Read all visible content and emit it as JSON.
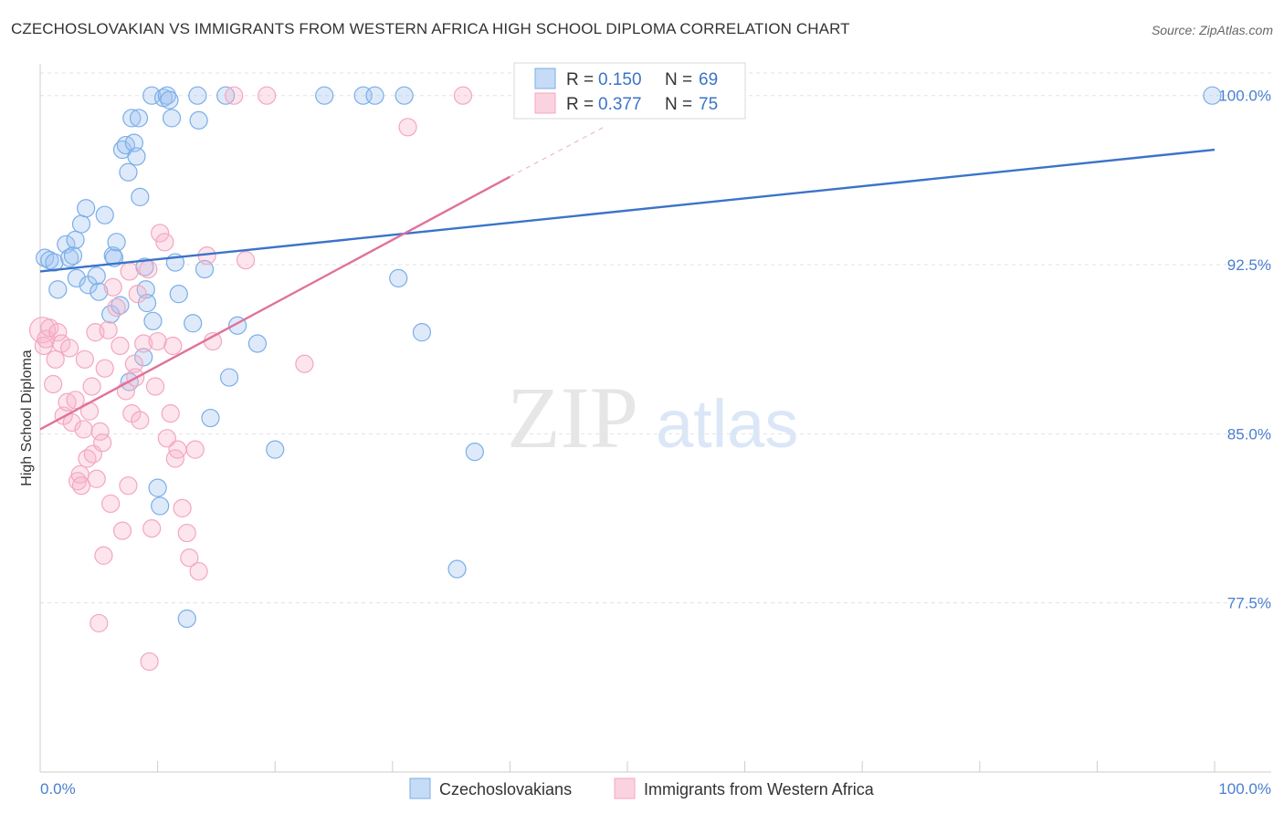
{
  "title": "CZECHOSLOVAKIAN VS IMMIGRANTS FROM WESTERN AFRICA HIGH SCHOOL DIPLOMA CORRELATION CHART",
  "source": "Source: ZipAtlas.com",
  "watermark": {
    "zip": "ZIP",
    "atlas": "atlas"
  },
  "chart_data": {
    "type": "scatter",
    "title": "CZECHOSLOVAKIAN VS IMMIGRANTS FROM WESTERN AFRICA HIGH SCHOOL DIPLOMA CORRELATION CHART",
    "xlabel": "",
    "ylabel": "High School Diploma",
    "xlim": [
      0,
      100
    ],
    "ylim": [
      70,
      101
    ],
    "x_tick_labels": [
      "0.0%",
      "100.0%"
    ],
    "y_ticks": [
      77.5,
      85.0,
      92.5,
      100.0
    ],
    "y_tick_labels": [
      "77.5%",
      "85.0%",
      "92.5%",
      "100.0%"
    ],
    "grid": true,
    "legend": [
      {
        "r_label": "R =",
        "r_value": "0.150",
        "n_label": "N =",
        "n_value": "69"
      },
      {
        "r_label": "R =",
        "r_value": "0.377",
        "n_label": "N =",
        "n_value": "75"
      }
    ],
    "series": [
      {
        "name": "Czechoslovakians",
        "color": "#7aaee8",
        "trend": {
          "x": [
            0,
            100
          ],
          "y": [
            92.2,
            97.6
          ],
          "color": "#3b73c9"
        },
        "points": [
          [
            0.4,
            92.8
          ],
          [
            0.8,
            92.7
          ],
          [
            1.2,
            92.6
          ],
          [
            1.5,
            91.4
          ],
          [
            2.2,
            93.4
          ],
          [
            2.5,
            92.8
          ],
          [
            2.8,
            92.9
          ],
          [
            3,
            93.6
          ],
          [
            3.1,
            91.9
          ],
          [
            3.5,
            94.3
          ],
          [
            3.9,
            95
          ],
          [
            4.1,
            91.6
          ],
          [
            4.8,
            92
          ],
          [
            5,
            91.3
          ],
          [
            5.5,
            94.7
          ],
          [
            6,
            90.3
          ],
          [
            6.2,
            92.9
          ],
          [
            6.3,
            92.8
          ],
          [
            6.5,
            93.5
          ],
          [
            6.8,
            90.7
          ],
          [
            7,
            97.6
          ],
          [
            7.3,
            97.8
          ],
          [
            7.5,
            96.6
          ],
          [
            7.6,
            87.3
          ],
          [
            7.8,
            99
          ],
          [
            8,
            97.9
          ],
          [
            8.2,
            97.3
          ],
          [
            8.4,
            99
          ],
          [
            8.5,
            95.5
          ],
          [
            8.8,
            88.4
          ],
          [
            8.9,
            92.4
          ],
          [
            9,
            91.4
          ],
          [
            9.1,
            90.8
          ],
          [
            9.5,
            100
          ],
          [
            9.6,
            90
          ],
          [
            10,
            82.6
          ],
          [
            10.2,
            81.8
          ],
          [
            10.5,
            99.9
          ],
          [
            10.8,
            100
          ],
          [
            11,
            99.8
          ],
          [
            11.2,
            99
          ],
          [
            11.5,
            92.6
          ],
          [
            11.8,
            91.2
          ],
          [
            12.5,
            76.8
          ],
          [
            13,
            89.9
          ],
          [
            13.4,
            100
          ],
          [
            13.5,
            98.9
          ],
          [
            14,
            92.3
          ],
          [
            14.5,
            85.7
          ],
          [
            15.8,
            100
          ],
          [
            16.1,
            87.5
          ],
          [
            16.8,
            89.8
          ],
          [
            18.5,
            89
          ],
          [
            20,
            84.3
          ],
          [
            24.2,
            100
          ],
          [
            27.5,
            100
          ],
          [
            28.5,
            100
          ],
          [
            30.5,
            91.9
          ],
          [
            31,
            100
          ],
          [
            32.5,
            89.5
          ],
          [
            35.5,
            79
          ],
          [
            37,
            84.2
          ],
          [
            99.8,
            100
          ]
        ]
      },
      {
        "name": "Immigrants from Western Africa",
        "color": "#f4a6c0",
        "trend": {
          "x": [
            0,
            40
          ],
          "y": [
            85.2,
            96.4
          ],
          "color": "#e0719a",
          "dash_to": {
            "x": 48,
            "y": 98.6
          }
        },
        "points": [
          [
            0.2,
            89.6
          ],
          [
            0.3,
            88.9
          ],
          [
            0.5,
            89.2
          ],
          [
            0.8,
            89.7
          ],
          [
            1.1,
            87.2
          ],
          [
            1.3,
            88.3
          ],
          [
            1.5,
            89.5
          ],
          [
            1.8,
            89
          ],
          [
            2,
            85.8
          ],
          [
            2.3,
            86.4
          ],
          [
            2.5,
            88.8
          ],
          [
            2.7,
            85.5
          ],
          [
            3,
            86.5
          ],
          [
            3.2,
            82.9
          ],
          [
            3.4,
            83.2
          ],
          [
            3.5,
            82.7
          ],
          [
            3.7,
            85.2
          ],
          [
            3.8,
            88.3
          ],
          [
            4,
            83.9
          ],
          [
            4.2,
            86
          ],
          [
            4.4,
            87.1
          ],
          [
            4.5,
            84.1
          ],
          [
            4.7,
            89.5
          ],
          [
            4.8,
            83
          ],
          [
            5.1,
            85.1
          ],
          [
            5.3,
            84.6
          ],
          [
            5.4,
            79.6
          ],
          [
            5.5,
            87.9
          ],
          [
            5.8,
            89.6
          ],
          [
            6,
            81.9
          ],
          [
            6.2,
            91.5
          ],
          [
            6.5,
            90.6
          ],
          [
            6.8,
            88.9
          ],
          [
            7,
            80.7
          ],
          [
            7.3,
            86.9
          ],
          [
            7.5,
            82.7
          ],
          [
            7.6,
            92.2
          ],
          [
            7.8,
            85.9
          ],
          [
            8,
            88.1
          ],
          [
            8.1,
            87.5
          ],
          [
            8.3,
            91.2
          ],
          [
            8.5,
            85.6
          ],
          [
            8.8,
            89
          ],
          [
            9.2,
            92.3
          ],
          [
            9.3,
            74.9
          ],
          [
            9.5,
            80.8
          ],
          [
            9.8,
            87.1
          ],
          [
            10,
            89.1
          ],
          [
            10.2,
            93.9
          ],
          [
            10.6,
            93.5
          ],
          [
            10.8,
            84.8
          ],
          [
            11.1,
            85.9
          ],
          [
            11.3,
            88.9
          ],
          [
            11.5,
            83.9
          ],
          [
            11.7,
            84.3
          ],
          [
            12.1,
            81.7
          ],
          [
            12.5,
            80.6
          ],
          [
            12.7,
            79.5
          ],
          [
            13.2,
            84.3
          ],
          [
            13.5,
            78.9
          ],
          [
            14.2,
            92.9
          ],
          [
            14.7,
            89.1
          ],
          [
            16.5,
            100
          ],
          [
            17.5,
            92.7
          ],
          [
            19.3,
            100
          ],
          [
            22.5,
            88.1
          ],
          [
            31.3,
            98.6
          ],
          [
            36,
            100
          ],
          [
            5,
            76.6
          ]
        ]
      }
    ]
  }
}
